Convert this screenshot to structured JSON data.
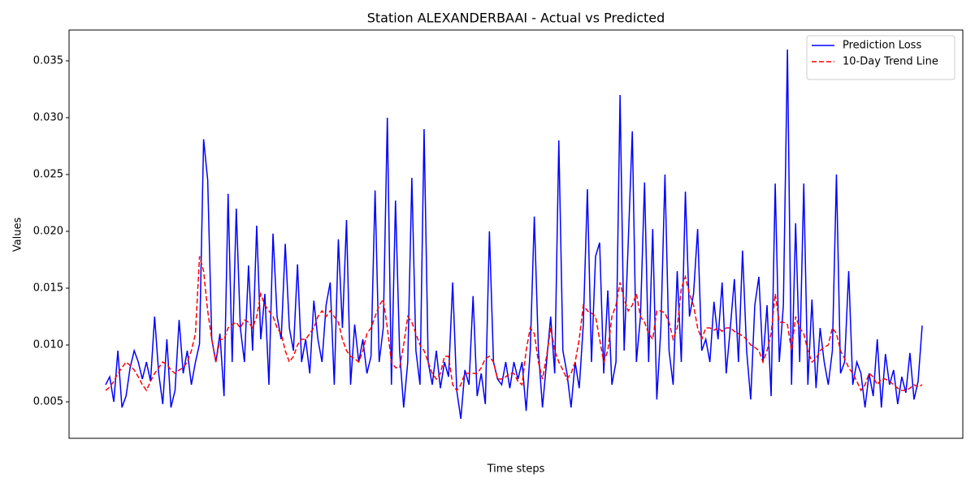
{
  "chart_data": {
    "type": "line",
    "title": "Station ALEXANDERBAAI - Actual vs Predicted",
    "x_label": "Time steps",
    "y_label": "Values",
    "ylim": [
      0.00179,
      0.03771
    ],
    "yticks": [
      0.005,
      {
        "value": 0.01,
        "label": "0.010"
      },
      0.015,
      {
        "value": 0.02,
        "label": "0.020"
      },
      0.025,
      {
        "value": 0.03,
        "label": "0.030"
      },
      0.035
    ],
    "legend": "upper right",
    "series": [
      {
        "name": "Prediction Loss",
        "color": "#0000ff",
        "linestyle": "solid",
        "values": [
          0.0065,
          0.0072,
          0.005,
          0.0095,
          0.0045,
          0.0055,
          0.008,
          0.0095,
          0.0085,
          0.007,
          0.0085,
          0.0068,
          0.0125,
          0.0075,
          0.0048,
          0.0105,
          0.0045,
          0.006,
          0.0122,
          0.0075,
          0.0095,
          0.0065,
          0.0085,
          0.0101,
          0.0281,
          0.0245,
          0.0105,
          0.0085,
          0.011,
          0.0055,
          0.0233,
          0.0085,
          0.022,
          0.0115,
          0.0085,
          0.017,
          0.0095,
          0.0205,
          0.0105,
          0.0145,
          0.0065,
          0.0198,
          0.0125,
          0.0105,
          0.0189,
          0.0115,
          0.0095,
          0.0171,
          0.0085,
          0.0105,
          0.0075,
          0.0139,
          0.0105,
          0.0085,
          0.0135,
          0.0155,
          0.0065,
          0.0193,
          0.0115,
          0.021,
          0.0065,
          0.0118,
          0.0085,
          0.0105,
          0.0075,
          0.009,
          0.0236,
          0.0085,
          0.0115,
          0.03,
          0.0065,
          0.0227,
          0.0095,
          0.0045,
          0.0085,
          0.0247,
          0.0095,
          0.0065,
          0.029,
          0.0085,
          0.0065,
          0.0095,
          0.0062,
          0.0085,
          0.0072,
          0.0155,
          0.006,
          0.0035,
          0.0078,
          0.0065,
          0.0143,
          0.0055,
          0.0075,
          0.0048,
          0.02,
          0.0085,
          0.007,
          0.0065,
          0.0085,
          0.0062,
          0.0085,
          0.007,
          0.0085,
          0.0042,
          0.0095,
          0.0213,
          0.0095,
          0.0045,
          0.0085,
          0.0125,
          0.0075,
          0.028,
          0.0095,
          0.0075,
          0.0045,
          0.0085,
          0.0062,
          0.0118,
          0.0237,
          0.0085,
          0.0178,
          0.019,
          0.0075,
          0.0148,
          0.0065,
          0.0085,
          0.032,
          0.0095,
          0.019,
          0.0288,
          0.0085,
          0.0125,
          0.0243,
          0.0085,
          0.0202,
          0.0052,
          0.0115,
          0.025,
          0.0095,
          0.0065,
          0.0165,
          0.0085,
          0.0235,
          0.0125,
          0.0145,
          0.0202,
          0.0095,
          0.0105,
          0.0085,
          0.0138,
          0.0105,
          0.0155,
          0.0075,
          0.0115,
          0.0158,
          0.0085,
          0.0183,
          0.0095,
          0.0052,
          0.0135,
          0.016,
          0.0085,
          0.0135,
          0.0055,
          0.0242,
          0.0085,
          0.0135,
          0.036,
          0.0065,
          0.0207,
          0.0085,
          0.0242,
          0.0065,
          0.014,
          0.0062,
          0.0115,
          0.0085,
          0.0065,
          0.0095,
          0.025,
          0.0075,
          0.0085,
          0.0165,
          0.0065,
          0.0085,
          0.0075,
          0.0045,
          0.0075,
          0.0055,
          0.0105,
          0.0045,
          0.0092,
          0.0065,
          0.0078,
          0.0048,
          0.0072,
          0.0058,
          0.0093,
          0.0052,
          0.0068,
          0.0117
        ]
      },
      {
        "name": "10-Day Trend Line",
        "color": "#ff0000",
        "linestyle": "dashed",
        "values": [
          0.006,
          0.0063,
          0.0068,
          0.0075,
          0.008,
          0.0085,
          0.0082,
          0.0078,
          0.0072,
          0.0065,
          0.006,
          0.0068,
          0.0075,
          0.008,
          0.0085,
          0.0083,
          0.0078,
          0.0075,
          0.0078,
          0.008,
          0.0085,
          0.0095,
          0.011,
          0.0178,
          0.0165,
          0.013,
          0.0105,
          0.0085,
          0.0105,
          0.0105,
          0.0115,
          0.0118,
          0.012,
          0.0115,
          0.0122,
          0.012,
          0.0115,
          0.0125,
          0.0145,
          0.0135,
          0.013,
          0.0125,
          0.0115,
          0.011,
          0.0095,
          0.0085,
          0.009,
          0.01,
          0.0105,
          0.0105,
          0.011,
          0.0115,
          0.0125,
          0.013,
          0.0125,
          0.013,
          0.0125,
          0.012,
          0.0105,
          0.0095,
          0.009,
          0.0088,
          0.0085,
          0.0095,
          0.011,
          0.0115,
          0.0125,
          0.0135,
          0.014,
          0.0115,
          0.0085,
          0.008,
          0.008,
          0.01,
          0.0125,
          0.012,
          0.011,
          0.01,
          0.0095,
          0.0085,
          0.0075,
          0.007,
          0.0075,
          0.009,
          0.009,
          0.0065,
          0.006,
          0.0065,
          0.0075,
          0.0075,
          0.0075,
          0.0075,
          0.008,
          0.0088,
          0.009,
          0.0085,
          0.007,
          0.007,
          0.0072,
          0.0075,
          0.0075,
          0.0068,
          0.0065,
          0.0095,
          0.0115,
          0.011,
          0.0085,
          0.007,
          0.009,
          0.0115,
          0.0095,
          0.0085,
          0.0078,
          0.007,
          0.0075,
          0.0085,
          0.0105,
          0.0135,
          0.013,
          0.0128,
          0.0125,
          0.0105,
          0.0085,
          0.0095,
          0.0125,
          0.0135,
          0.0155,
          0.014,
          0.013,
          0.0135,
          0.0145,
          0.0125,
          0.012,
          0.011,
          0.0105,
          0.013,
          0.013,
          0.0128,
          0.012,
          0.0105,
          0.0115,
          0.015,
          0.016,
          0.0145,
          0.0135,
          0.0115,
          0.0105,
          0.0115,
          0.0115,
          0.0113,
          0.0115,
          0.0112,
          0.0115,
          0.0115,
          0.0112,
          0.011,
          0.0108,
          0.0105,
          0.01,
          0.0098,
          0.0095,
          0.0085,
          0.0095,
          0.011,
          0.0145,
          0.012,
          0.012,
          0.0118,
          0.0095,
          0.0125,
          0.0115,
          0.011,
          0.0095,
          0.0085,
          0.0088,
          0.0095,
          0.0098,
          0.01,
          0.0115,
          0.011,
          0.0095,
          0.0088,
          0.008,
          0.0075,
          0.0068,
          0.006,
          0.0065,
          0.0075,
          0.0072,
          0.0065,
          0.007,
          0.007,
          0.0068,
          0.0065,
          0.0062,
          0.006,
          0.006,
          0.0062,
          0.0065,
          0.0063,
          0.0065
        ]
      }
    ]
  }
}
